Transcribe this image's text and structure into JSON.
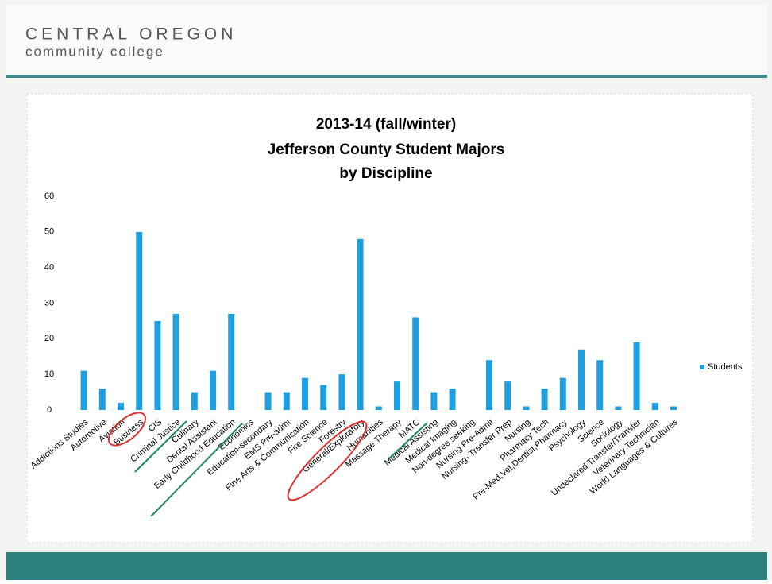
{
  "header": {
    "line1": "CENTRAL OREGON",
    "line2": "community college"
  },
  "chart_data": {
    "type": "bar",
    "title": "2013-14 (fall/winter)",
    "subtitle": "Jefferson County Student Majors",
    "subtitle2": "by Discipline",
    "categories": [
      "Addictions Studies",
      "Automotive",
      "Aviation",
      "Business",
      "CIS",
      "Criminal Justice",
      "Culinary",
      "Dental Assistant",
      "Early Childhood Education",
      "Economics",
      "Education-secondary",
      "EMS Pre-admt",
      "Fine Arts & Communication",
      "Fire Science",
      "Forestry",
      "General/Exploratory",
      "Humanities",
      "Massage Therapy",
      "MATC",
      "Medical Assisting",
      "Medical Imaging",
      "Non-degree seeking",
      "Nursing Pre-Admit",
      "Nursing- Transfer Prep",
      "Nursing",
      "Pharmacy Tech",
      "Pre-Med,Vet,Dentist,Pharmacy",
      "Psychology",
      "Science",
      "Sociology",
      "Undeclared Transfer/Transfer",
      "Veterinary Technician",
      "World Languages & Cultures"
    ],
    "series": [
      {
        "name": "Students",
        "color": "#1ea0e0",
        "values": [
          11,
          6,
          2,
          50,
          25,
          27,
          5,
          11,
          27,
          0,
          5,
          5,
          9,
          7,
          10,
          48,
          1,
          8,
          26,
          5,
          6,
          0,
          14,
          8,
          1,
          6,
          9,
          17,
          14,
          1,
          19,
          2,
          1
        ]
      }
    ],
    "ylim": [
      0,
      60
    ],
    "yticks": [
      0,
      10,
      20,
      30,
      40,
      50,
      60
    ],
    "legend": "right"
  }
}
